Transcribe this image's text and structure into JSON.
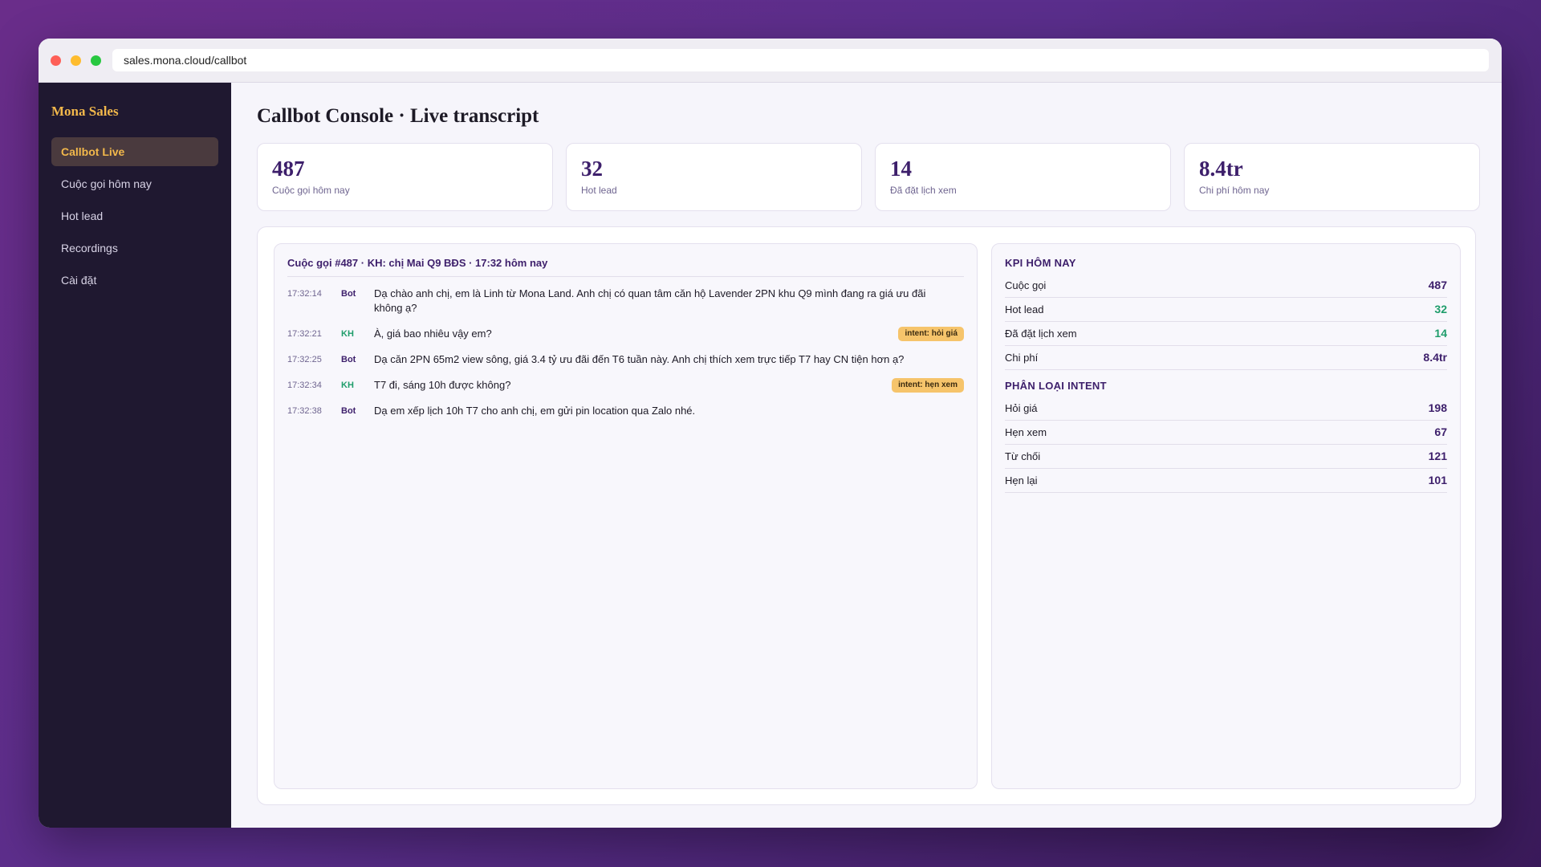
{
  "browser": {
    "url": "sales.mona.cloud/callbot"
  },
  "sidebar": {
    "brand": "Mona Sales",
    "nav": [
      "Callbot Live",
      "Cuộc gọi hôm nay",
      "Hot lead",
      "Recordings",
      "Cài đặt"
    ]
  },
  "main": {
    "title": "Callbot Console · Live transcript"
  },
  "stats": [
    {
      "value": "487",
      "label": "Cuộc gọi hôm nay"
    },
    {
      "value": "32",
      "label": "Hot lead"
    },
    {
      "value": "14",
      "label": "Đã đặt lịch xem"
    },
    {
      "value": "8.4tr",
      "label": "Chi phí hôm nay"
    }
  ],
  "transcript": {
    "header": "Cuộc gọi #487 · KH: chị Mai Q9 BĐS · 17:32 hôm nay",
    "messages": [
      {
        "time": "17:32:14",
        "speaker": "Bot",
        "text": "Dạ chào anh chị, em là Linh từ Mona Land. Anh chị có quan tâm căn hộ Lavender 2PN khu Q9 mình đang ra giá ưu đãi không ạ?"
      },
      {
        "time": "17:32:21",
        "speaker": "KH",
        "text": "À, giá bao nhiêu vậy em?",
        "tag": "intent: hỏi giá"
      },
      {
        "time": "17:32:25",
        "speaker": "Bot",
        "text": "Dạ căn 2PN 65m2 view sông, giá 3.4 tỷ ưu đãi đến T6 tuần này. Anh chị thích xem trực tiếp T7 hay CN tiện hơn ạ?"
      },
      {
        "time": "17:32:34",
        "speaker": "KH",
        "text": "T7 đi, sáng 10h được không?",
        "tag": "intent: hẹn xem"
      },
      {
        "time": "17:32:38",
        "speaker": "Bot",
        "text": "Dạ em xếp lịch 10h T7 cho anh chị, em gửi pin location qua Zalo nhé."
      }
    ]
  },
  "kpi": {
    "sections": [
      {
        "title": "KPI HÔM NAY",
        "rows": [
          {
            "label": "Cuộc gọi",
            "value": "487"
          },
          {
            "label": "Hot lead",
            "value": "32"
          },
          {
            "label": "Đã đặt lịch xem",
            "value": "14"
          },
          {
            "label": "Chi phí",
            "value": "8.4tr"
          }
        ]
      },
      {
        "title": "PHÂN LOẠI INTENT",
        "rows": [
          {
            "label": "Hỏi giá",
            "value": "198"
          },
          {
            "label": "Hẹn xem",
            "value": "67"
          },
          {
            "label": "Từ chối",
            "value": "121"
          },
          {
            "label": "Hẹn lại",
            "value": "101"
          }
        ]
      }
    ]
  }
}
